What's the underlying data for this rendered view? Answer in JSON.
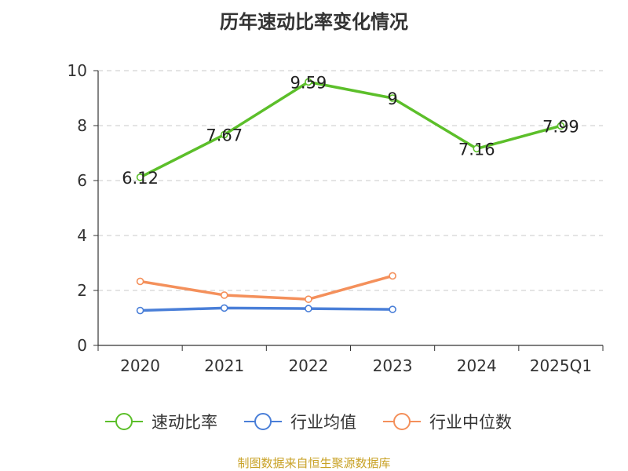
{
  "chart_data": {
    "type": "line",
    "title": "历年速动比率变化情况",
    "categories": [
      "2020",
      "2021",
      "2022",
      "2023",
      "2024",
      "2025Q1"
    ],
    "ylim": [
      0,
      10
    ],
    "yticks": [
      0,
      2,
      4,
      6,
      8,
      10
    ],
    "grid": true,
    "legend_position": "bottom",
    "series": [
      {
        "name": "速动比率",
        "color": "#5cbf2a",
        "values": [
          6.12,
          7.67,
          9.59,
          9,
          7.16,
          7.99
        ],
        "labels": [
          "6.12",
          "7.67",
          "9.59",
          "9",
          "7.16",
          "7.99"
        ]
      },
      {
        "name": "行业均值",
        "color": "#4a7fd8",
        "values": [
          1.27,
          1.36,
          1.34,
          1.31,
          null,
          null
        ]
      },
      {
        "name": "行业中位数",
        "color": "#f4905b",
        "values": [
          2.33,
          1.83,
          1.68,
          2.53,
          null,
          null
        ]
      }
    ]
  },
  "source_text": "制图数据来自恒生聚源数据库"
}
